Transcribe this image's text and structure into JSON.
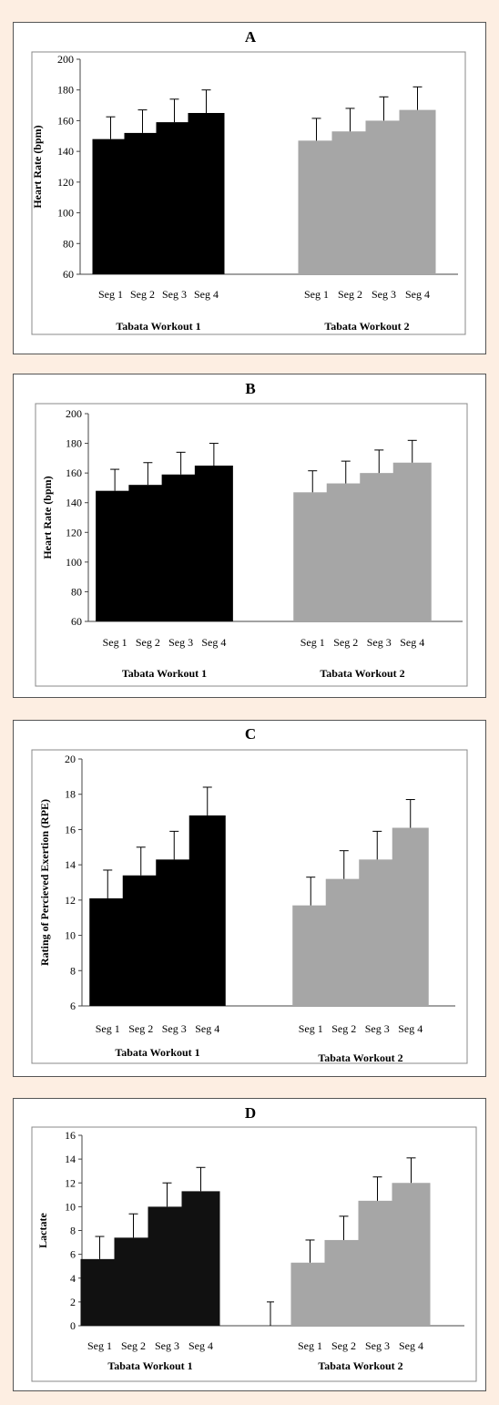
{
  "chart_data": [
    {
      "type": "bar",
      "panel_label": "A",
      "ylabel": "Heart Rate (bpm)",
      "ylim": [
        60,
        200
      ],
      "yticks": [
        60,
        80,
        100,
        120,
        140,
        160,
        180,
        200
      ],
      "categories": [
        "Seg 1",
        "Seg 2",
        "Seg 3",
        "Seg 4"
      ],
      "groups": [
        "Tabata Workout 1",
        "Tabata Workout 2"
      ],
      "series": [
        {
          "name": "Tabata Workout 1",
          "color": "#000000",
          "values": [
            148,
            152,
            159,
            165
          ],
          "errors": [
            14.5,
            15,
            15,
            15
          ]
        },
        {
          "name": "Tabata Workout 2",
          "color": "#a6a6a6",
          "values": [
            147,
            153,
            160,
            167
          ],
          "errors": [
            14.5,
            15,
            15.5,
            15
          ]
        }
      ],
      "extra_bars": []
    },
    {
      "type": "bar",
      "panel_label": "B",
      "ylabel": "Heart Rate (bpm)",
      "ylim": [
        60,
        200
      ],
      "yticks": [
        60,
        80,
        100,
        120,
        140,
        160,
        180,
        200
      ],
      "categories": [
        "Seg 1",
        "Seg 2",
        "Seg 3",
        "Seg 4"
      ],
      "groups": [
        "Tabata Workout 1",
        "Tabata Workout 2"
      ],
      "series": [
        {
          "name": "Tabata Workout 1",
          "color": "#000000",
          "values": [
            148,
            152,
            159,
            165
          ],
          "errors": [
            14.5,
            15,
            15,
            15
          ]
        },
        {
          "name": "Tabata Workout 2",
          "color": "#a6a6a6",
          "values": [
            147,
            153,
            160,
            167
          ],
          "errors": [
            14.5,
            15,
            15.5,
            15
          ]
        }
      ],
      "extra_bars": []
    },
    {
      "type": "bar",
      "panel_label": "C",
      "ylabel": "Rating of Percieved Exertion (RPE)",
      "ylim": [
        6,
        20
      ],
      "yticks": [
        6,
        8,
        10,
        12,
        14,
        16,
        18,
        20
      ],
      "categories": [
        "Seg 1",
        "Seg 2",
        "Seg 3",
        "Seg 4"
      ],
      "groups": [
        "Tabata Workout 1",
        "Tabata Workout 2"
      ],
      "series": [
        {
          "name": "Tabata Workout 1",
          "color": "#000000",
          "values": [
            12.1,
            13.4,
            14.3,
            16.8
          ],
          "errors": [
            1.6,
            1.6,
            1.6,
            1.6
          ]
        },
        {
          "name": "Tabata Workout 2",
          "color": "#a6a6a6",
          "values": [
            11.7,
            13.2,
            14.3,
            16.1
          ],
          "errors": [
            1.6,
            1.6,
            1.6,
            1.6
          ]
        }
      ],
      "extra_bars": []
    },
    {
      "type": "bar",
      "panel_label": "D",
      "ylabel": "Lactate",
      "ylim": [
        0,
        16
      ],
      "yticks": [
        0,
        2,
        4,
        6,
        8,
        10,
        12,
        14,
        16
      ],
      "categories": [
        "Seg 1",
        "Seg 2",
        "Seg 3",
        "Seg 4"
      ],
      "groups": [
        "Tabata Workout 1",
        "Tabata Workout 2"
      ],
      "series": [
        {
          "name": "Tabata Workout 1",
          "color": "#111111",
          "values": [
            5.6,
            7.4,
            10.0,
            11.3
          ],
          "errors": [
            1.9,
            2.0,
            2.0,
            2.0
          ]
        },
        {
          "name": "Tabata Workout 2",
          "color": "#a6a6a6",
          "values": [
            5.3,
            7.2,
            10.5,
            12.0
          ],
          "errors": [
            1.9,
            2.0,
            2.0,
            2.1
          ]
        }
      ],
      "extra_bars": [
        {
          "position": "gap",
          "value": 0,
          "error": 2.0
        }
      ]
    }
  ]
}
